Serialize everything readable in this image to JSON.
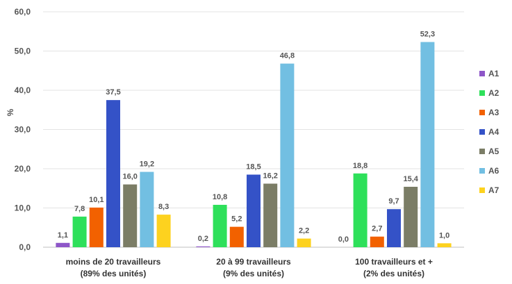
{
  "chart_data": {
    "type": "bar",
    "ylabel": "%",
    "ylim": [
      0,
      60
    ],
    "yticks": [
      "0,0",
      "10,0",
      "20,0",
      "30,0",
      "40,0",
      "50,0",
      "60,0"
    ],
    "grid": true,
    "legend_position": "right",
    "categories": [
      [
        "moins de 20 travailleurs",
        "(89% des unités)"
      ],
      [
        "20 à 99 travailleurs",
        "(9% des unités)"
      ],
      [
        "100 travailleurs et +",
        "(2% des unités)"
      ]
    ],
    "series": [
      {
        "name": "A1",
        "color": "#8e56c8",
        "values": [
          1.1,
          0.2,
          0.0
        ],
        "labels": [
          "1,1",
          "0,2",
          "0,0"
        ]
      },
      {
        "name": "A2",
        "color": "#2ee05a",
        "values": [
          7.8,
          10.8,
          18.8
        ],
        "labels": [
          "7,8",
          "10,8",
          "18,8"
        ]
      },
      {
        "name": "A3",
        "color": "#f26100",
        "values": [
          10.1,
          5.2,
          2.7
        ],
        "labels": [
          "10,1",
          "5,2",
          "2,7"
        ]
      },
      {
        "name": "A4",
        "color": "#3452c7",
        "values": [
          37.5,
          18.5,
          9.7
        ],
        "labels": [
          "37,5",
          "18,5",
          "9,7"
        ]
      },
      {
        "name": "A5",
        "color": "#7b7d66",
        "values": [
          16.0,
          16.2,
          15.4
        ],
        "labels": [
          "16,0",
          "16,2",
          "15,4"
        ]
      },
      {
        "name": "A6",
        "color": "#72bfe2",
        "values": [
          19.2,
          46.8,
          52.3
        ],
        "labels": [
          "19,2",
          "46,8",
          "52,3"
        ]
      },
      {
        "name": "A7",
        "color": "#fdd21f",
        "values": [
          8.3,
          2.2,
          1.0
        ],
        "labels": [
          "8,3",
          "2,2",
          "1,0"
        ]
      }
    ]
  }
}
